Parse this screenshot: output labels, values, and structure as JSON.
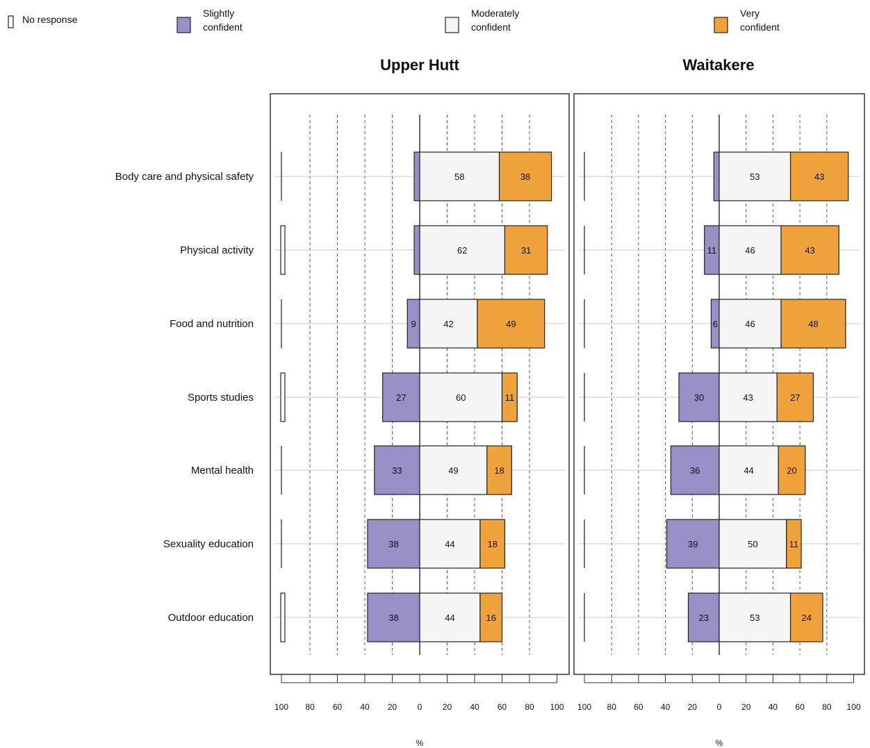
{
  "chart_data": {
    "type": "bar",
    "orientation": "horizontal",
    "stacking": "diverging",
    "legend_placement": "top",
    "xlabel": "%",
    "categories": [
      "Body care and physical safety",
      "Physical activity",
      "Food and nutrition",
      "Sports studies",
      "Mental health",
      "Sexuality education",
      "Outdoor education"
    ],
    "legend": [
      {
        "key": "no_response",
        "label": "No response",
        "color": "#ffffff"
      },
      {
        "key": "slightly",
        "label": "Slightly confident",
        "label_lines": [
          "Slightly",
          "confident"
        ],
        "color": "#9a8fc6"
      },
      {
        "key": "moderately",
        "label": "Moderately confident",
        "label_lines": [
          "Moderately",
          "confident"
        ],
        "color": "#f5f5f5"
      },
      {
        "key": "very",
        "label": "Very confident",
        "label_lines": [
          "Very",
          "confident"
        ],
        "color": "#f0a23c"
      }
    ],
    "ticks": [
      "100",
      "80",
      "60",
      "40",
      "20",
      "0",
      "20",
      "40",
      "60",
      "80",
      "100"
    ],
    "panels": [
      {
        "title": "Upper Hutt",
        "no_response": [
          0,
          1,
          0,
          1,
          0,
          0,
          1
        ],
        "slightly": [
          4,
          4,
          9,
          27,
          33,
          38,
          38
        ],
        "moderately": [
          58,
          62,
          42,
          60,
          49,
          44,
          44
        ],
        "very": [
          38,
          31,
          49,
          11,
          18,
          18,
          16
        ]
      },
      {
        "title": "Waitakere",
        "no_response": [
          0,
          0,
          0,
          0,
          0,
          0,
          0
        ],
        "slightly": [
          4,
          11,
          6,
          30,
          36,
          39,
          23
        ],
        "moderately": [
          53,
          46,
          46,
          43,
          44,
          50,
          53
        ],
        "very": [
          43,
          43,
          48,
          27,
          20,
          11,
          24
        ]
      }
    ]
  }
}
